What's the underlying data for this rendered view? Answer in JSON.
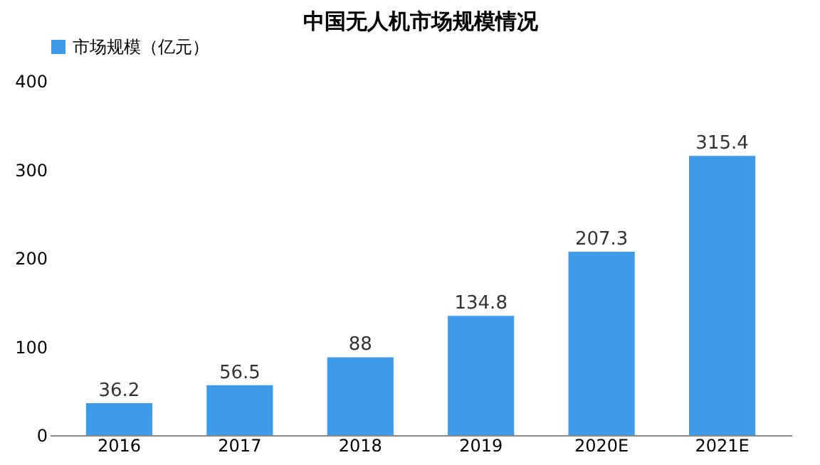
{
  "chart_data": {
    "type": "bar",
    "title": "中国无人机市场规模情况",
    "categories": [
      "2016",
      "2017",
      "2018",
      "2019",
      "2020E",
      "2021E"
    ],
    "series": [
      {
        "name": "市场规模（亿元）",
        "color": "#3d9be9",
        "values": [
          36.2,
          56.5,
          88,
          134.8,
          207.3,
          315.4
        ]
      }
    ],
    "ylim": [
      0,
      400
    ],
    "yticks": [
      0,
      100,
      200,
      300,
      400
    ],
    "grid": false,
    "legend": "top",
    "data_labels": true
  }
}
